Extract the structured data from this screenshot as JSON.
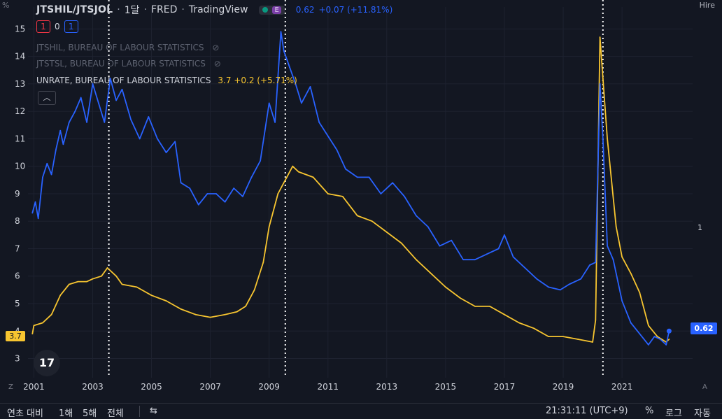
{
  "header": {
    "symbol": "JTSHIL/JTSJOL",
    "interval": "1달",
    "source": "FRED",
    "brand": "TradingView",
    "pill_letter": "E",
    "last_value": "0.62",
    "change": "+0.07 (+11.81%)"
  },
  "counts": {
    "red": "1",
    "zero": "0",
    "blue": "1"
  },
  "legend": {
    "hil_label": "JTSHIL, BUREAU OF LABOUR STATISTICS",
    "tsl_label": "JTSTSL, BUREAU OF LABOUR STATISTICS",
    "ur_label": "UNRATE, BUREAU OF LABOUR STATISTICS",
    "ur_value": "3.7",
    "ur_change": "+0.2 (+5.71%)"
  },
  "axis_texts": {
    "left_unit": "%",
    "right_title": "Hire",
    "right_level": "1",
    "last_badge": "0.62",
    "left_badge": "3.7",
    "logo": "17",
    "z_button": "Z",
    "a_button": "A"
  },
  "bottom_bar": {
    "ytd": "연초 대비",
    "one_year": "1해",
    "five_year": "5해",
    "all": "전체",
    "time": "21:31:11 (UTC+9)",
    "percent": "%",
    "log": "로그",
    "auto": "자동"
  },
  "colors": {
    "background": "#131722",
    "ratio_line": "#2962ff",
    "unrate_line": "#f7c530",
    "grid": "#1e2230",
    "axis_text": "#d1d4dc"
  },
  "chart_data": {
    "type": "line",
    "y_axis_left": {
      "min": 2.3,
      "max": 15.8,
      "ticks": [
        3,
        4,
        5,
        6,
        7,
        8,
        9,
        10,
        11,
        12,
        13,
        14,
        15
      ]
    },
    "x_axis": {
      "ticks": [
        "2001",
        "2003",
        "2005",
        "2007",
        "2009",
        "2011",
        "2013",
        "2015",
        "2017",
        "2019",
        "2021"
      ]
    },
    "vertical_markers": [
      2003.55,
      2009.55,
      2020.35
    ],
    "grid": true,
    "series": [
      {
        "name": "UNRATE",
        "color": "#f7c530",
        "points": [
          [
            2000.95,
            3.9
          ],
          [
            2001.0,
            4.2
          ],
          [
            2001.3,
            4.3
          ],
          [
            2001.6,
            4.6
          ],
          [
            2001.9,
            5.3
          ],
          [
            2002.2,
            5.7
          ],
          [
            2002.5,
            5.8
          ],
          [
            2002.8,
            5.8
          ],
          [
            2003.0,
            5.9
          ],
          [
            2003.3,
            6.0
          ],
          [
            2003.5,
            6.3
          ],
          [
            2003.8,
            6.0
          ],
          [
            2004.0,
            5.7
          ],
          [
            2004.5,
            5.6
          ],
          [
            2005.0,
            5.3
          ],
          [
            2005.5,
            5.1
          ],
          [
            2006.0,
            4.8
          ],
          [
            2006.5,
            4.6
          ],
          [
            2007.0,
            4.5
          ],
          [
            2007.5,
            4.6
          ],
          [
            2007.9,
            4.7
          ],
          [
            2008.2,
            4.9
          ],
          [
            2008.5,
            5.5
          ],
          [
            2008.8,
            6.5
          ],
          [
            2009.0,
            7.8
          ],
          [
            2009.3,
            9.0
          ],
          [
            2009.6,
            9.6
          ],
          [
            2009.8,
            10.0
          ],
          [
            2010.0,
            9.8
          ],
          [
            2010.5,
            9.6
          ],
          [
            2011.0,
            9.0
          ],
          [
            2011.5,
            8.9
          ],
          [
            2012.0,
            8.2
          ],
          [
            2012.5,
            8.0
          ],
          [
            2013.0,
            7.6
          ],
          [
            2013.5,
            7.2
          ],
          [
            2014.0,
            6.6
          ],
          [
            2014.5,
            6.1
          ],
          [
            2015.0,
            5.6
          ],
          [
            2015.5,
            5.2
          ],
          [
            2016.0,
            4.9
          ],
          [
            2016.5,
            4.9
          ],
          [
            2017.0,
            4.6
          ],
          [
            2017.5,
            4.3
          ],
          [
            2018.0,
            4.1
          ],
          [
            2018.5,
            3.8
          ],
          [
            2019.0,
            3.8
          ],
          [
            2019.5,
            3.7
          ],
          [
            2020.0,
            3.6
          ],
          [
            2020.1,
            4.4
          ],
          [
            2020.25,
            14.7
          ],
          [
            2020.35,
            13.2
          ],
          [
            2020.5,
            11.0
          ],
          [
            2020.8,
            7.8
          ],
          [
            2021.0,
            6.7
          ],
          [
            2021.3,
            6.1
          ],
          [
            2021.6,
            5.4
          ],
          [
            2021.9,
            4.2
          ],
          [
            2022.2,
            3.8
          ],
          [
            2022.5,
            3.6
          ],
          [
            2022.6,
            3.7
          ]
        ]
      },
      {
        "name": "JTSHIL/JTSJOL",
        "color": "#2962ff",
        "points": [
          [
            2000.95,
            8.3
          ],
          [
            2001.05,
            8.7
          ],
          [
            2001.15,
            8.1
          ],
          [
            2001.3,
            9.6
          ],
          [
            2001.45,
            10.1
          ],
          [
            2001.6,
            9.7
          ],
          [
            2001.75,
            10.6
          ],
          [
            2001.9,
            11.3
          ],
          [
            2002.0,
            10.8
          ],
          [
            2002.2,
            11.6
          ],
          [
            2002.4,
            12.0
          ],
          [
            2002.6,
            12.5
          ],
          [
            2002.8,
            11.6
          ],
          [
            2003.0,
            13.0
          ],
          [
            2003.2,
            12.3
          ],
          [
            2003.4,
            11.6
          ],
          [
            2003.6,
            13.2
          ],
          [
            2003.8,
            12.4
          ],
          [
            2004.0,
            12.8
          ],
          [
            2004.3,
            11.7
          ],
          [
            2004.6,
            11.0
          ],
          [
            2004.9,
            11.8
          ],
          [
            2005.2,
            11.0
          ],
          [
            2005.5,
            10.5
          ],
          [
            2005.8,
            10.9
          ],
          [
            2006.0,
            9.4
          ],
          [
            2006.3,
            9.2
          ],
          [
            2006.6,
            8.6
          ],
          [
            2006.9,
            9.0
          ],
          [
            2007.2,
            9.0
          ],
          [
            2007.5,
            8.7
          ],
          [
            2007.8,
            9.2
          ],
          [
            2008.1,
            8.9
          ],
          [
            2008.4,
            9.6
          ],
          [
            2008.7,
            10.2
          ],
          [
            2009.0,
            12.3
          ],
          [
            2009.2,
            11.6
          ],
          [
            2009.4,
            14.9
          ],
          [
            2009.5,
            14.2
          ],
          [
            2009.7,
            13.6
          ],
          [
            2009.9,
            13.0
          ],
          [
            2010.1,
            12.3
          ],
          [
            2010.4,
            12.9
          ],
          [
            2010.7,
            11.6
          ],
          [
            2011.0,
            11.1
          ],
          [
            2011.3,
            10.6
          ],
          [
            2011.6,
            9.9
          ],
          [
            2012.0,
            9.6
          ],
          [
            2012.4,
            9.6
          ],
          [
            2012.8,
            9.0
          ],
          [
            2013.2,
            9.4
          ],
          [
            2013.6,
            8.9
          ],
          [
            2014.0,
            8.2
          ],
          [
            2014.4,
            7.8
          ],
          [
            2014.8,
            7.1
          ],
          [
            2015.2,
            7.3
          ],
          [
            2015.6,
            6.6
          ],
          [
            2016.0,
            6.6
          ],
          [
            2016.4,
            6.8
          ],
          [
            2016.8,
            7.0
          ],
          [
            2017.0,
            7.5
          ],
          [
            2017.3,
            6.7
          ],
          [
            2017.7,
            6.3
          ],
          [
            2018.1,
            5.9
          ],
          [
            2018.5,
            5.6
          ],
          [
            2018.9,
            5.5
          ],
          [
            2019.2,
            5.7
          ],
          [
            2019.6,
            5.9
          ],
          [
            2019.9,
            6.4
          ],
          [
            2020.1,
            6.5
          ],
          [
            2020.25,
            13.0
          ],
          [
            2020.35,
            11.0
          ],
          [
            2020.5,
            7.1
          ],
          [
            2020.7,
            6.6
          ],
          [
            2021.0,
            5.1
          ],
          [
            2021.3,
            4.3
          ],
          [
            2021.6,
            3.9
          ],
          [
            2021.9,
            3.5
          ],
          [
            2022.1,
            3.8
          ],
          [
            2022.3,
            3.7
          ],
          [
            2022.5,
            3.5
          ],
          [
            2022.6,
            4.0
          ]
        ]
      }
    ]
  }
}
